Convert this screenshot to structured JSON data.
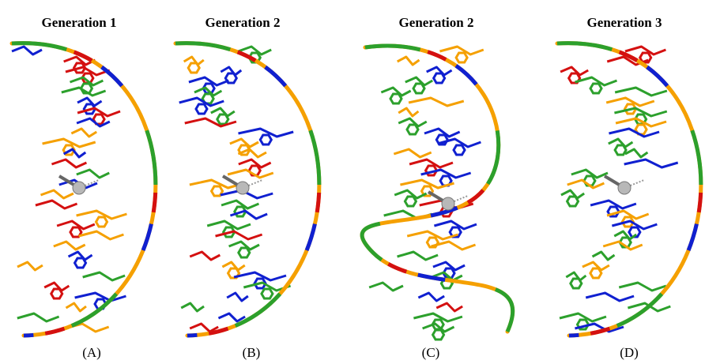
{
  "panels": [
    {
      "title": "Generation 1",
      "label": "(A)"
    },
    {
      "title": "Generation 2",
      "label": "(B)"
    },
    {
      "title": "Generation 2",
      "label": "(C)"
    },
    {
      "title": "Generation 3",
      "label": "(D)"
    }
  ]
}
